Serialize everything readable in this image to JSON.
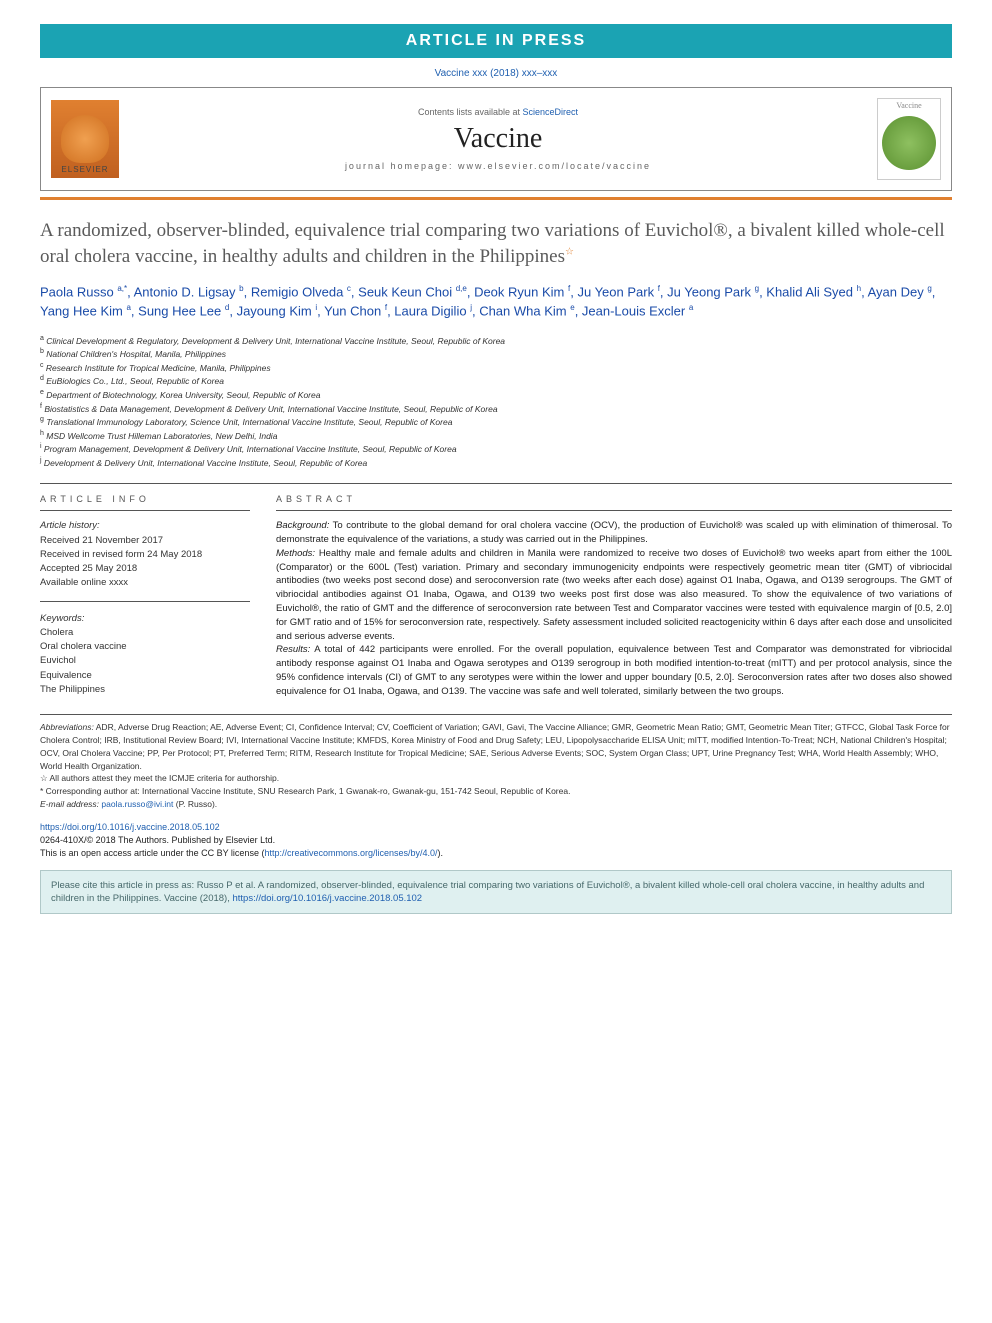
{
  "press_bar": "ARTICLE IN PRESS",
  "citation_line": "Vaccine xxx (2018) xxx–xxx",
  "header": {
    "contents_prefix": "Contents lists available at ",
    "contents_link": "ScienceDirect",
    "journal": "Vaccine",
    "homepage": "journal homepage: www.elsevier.com/locate/vaccine",
    "elsevier_label": "ELSEVIER",
    "cover_label": "Vaccine"
  },
  "title": "A randomized, observer-blinded, equivalence trial comparing two variations of Euvichol®, a bivalent killed whole-cell oral cholera vaccine, in healthy adults and children in the Philippines",
  "title_star": "☆",
  "authors_html": "Paola Russo <sup>a,*</sup>, Antonio D. Ligsay <sup>b</sup>, Remigio Olveda <sup>c</sup>, Seuk Keun Choi <sup>d,e</sup>, Deok Ryun Kim <sup>f</sup>, Ju Yeon Park <sup>f</sup>, Ju Yeong Park <sup>g</sup>, Khalid Ali Syed <sup>h</sup>, Ayan Dey <sup>g</sup>, Yang Hee Kim <sup>a</sup>, Sung Hee Lee <sup>d</sup>, Jayoung Kim <sup>i</sup>, Yun Chon <sup>f</sup>, Laura Digilio <sup>j</sup>, Chan Wha Kim <sup>e</sup>, Jean-Louis Excler <sup>a</sup>",
  "affiliations": [
    {
      "sup": "a",
      "text": "Clinical Development & Regulatory, Development & Delivery Unit, International Vaccine Institute, Seoul, Republic of Korea"
    },
    {
      "sup": "b",
      "text": "National Children's Hospital, Manila, Philippines"
    },
    {
      "sup": "c",
      "text": "Research Institute for Tropical Medicine, Manila, Philippines"
    },
    {
      "sup": "d",
      "text": "EuBiologics Co., Ltd., Seoul, Republic of Korea"
    },
    {
      "sup": "e",
      "text": "Department of Biotechnology, Korea University, Seoul, Republic of Korea"
    },
    {
      "sup": "f",
      "text": "Biostatistics & Data Management, Development & Delivery Unit, International Vaccine Institute, Seoul, Republic of Korea"
    },
    {
      "sup": "g",
      "text": "Translational Immunology Laboratory, Science Unit, International Vaccine Institute, Seoul, Republic of Korea"
    },
    {
      "sup": "h",
      "text": "MSD Wellcome Trust Hilleman Laboratories, New Delhi, India"
    },
    {
      "sup": "i",
      "text": "Program Management, Development & Delivery Unit, International Vaccine Institute, Seoul, Republic of Korea"
    },
    {
      "sup": "j",
      "text": "Development & Delivery Unit, International Vaccine Institute, Seoul, Republic of Korea"
    }
  ],
  "info_heading": "ARTICLE INFO",
  "history": {
    "label": "Article history:",
    "received": "Received 21 November 2017",
    "revised": "Received in revised form 24 May 2018",
    "accepted": "Accepted 25 May 2018",
    "online": "Available online xxxx"
  },
  "keywords": {
    "label": "Keywords:",
    "items": [
      "Cholera",
      "Oral cholera vaccine",
      "Euvichol",
      "Equivalence",
      "The Philippines"
    ]
  },
  "abstract_heading": "ABSTRACT",
  "abstract": {
    "bg_label": "Background:",
    "bg": " To contribute to the global demand for oral cholera vaccine (OCV), the production of Euvichol® was scaled up with elimination of thimerosal. To demonstrate the equivalence of the variations, a study was carried out in the Philippines.",
    "m_label": "Methods:",
    "m": " Healthy male and female adults and children in Manila were randomized to receive two doses of Euvichol® two weeks apart from either the 100L (Comparator) or the 600L (Test) variation. Primary and secondary immunogenicity endpoints were respectively geometric mean titer (GMT) of vibriocidal antibodies (two weeks post second dose) and seroconversion rate (two weeks after each dose) against O1 Inaba, Ogawa, and O139 serogroups. The GMT of vibriocidal antibodies against O1 Inaba, Ogawa, and O139 two weeks post first dose was also measured. To show the equivalence of two variations of Euvichol®, the ratio of GMT and the difference of seroconversion rate between Test and Comparator vaccines were tested with equivalence margin of [0.5, 2.0] for GMT ratio and of 15% for seroconversion rate, respectively. Safety assessment included solicited reactogenicity within 6 days after each dose and unsolicited and serious adverse events.",
    "r_label": "Results:",
    "r": " A total of 442 participants were enrolled. For the overall population, equivalence between Test and Comparator was demonstrated for vibriocidal antibody response against O1 Inaba and Ogawa serotypes and O139 serogroup in both modified intention-to-treat (mITT) and per protocol analysis, since the 95% confidence intervals (CI) of GMT to any serotypes were within the lower and upper boundary [0.5, 2.0]. Seroconversion rates after two doses also showed equivalence for O1 Inaba, Ogawa, and O139. The vaccine was safe and well tolerated, similarly between the two groups."
  },
  "footnotes": {
    "abbrev_label": "Abbreviations:",
    "abbrev": " ADR, Adverse Drug Reaction; AE, Adverse Event; CI, Confidence Interval; CV, Coefficient of Variation; GAVI, Gavi, The Vaccine Alliance; GMR, Geometric Mean Ratio; GMT, Geometric Mean Titer; GTFCC, Global Task Force for Cholera Control; IRB, Institutional Review Board; IVI, International Vaccine Institute; KMFDS, Korea Ministry of Food and Drug Safety; LEU, Lipopolysaccharide ELISA Unit; mITT, modified Intention-To-Treat; NCH, National Children's Hospital; OCV, Oral Cholera Vaccine; PP, Per Protocol; PT, Preferred Term; RITM, Research Institute for Tropical Medicine; SAE, Serious Adverse Events; SOC, System Organ Class; UPT, Urine Pregnancy Test; WHA, World Health Assembly; WHO, World Health Organization.",
    "star1": "☆ All authors attest they meet the ICMJE criteria for authorship.",
    "star2": "* Corresponding author at: International Vaccine Institute, SNU Research Park, 1 Gwanak-ro, Gwanak-gu, 151-742 Seoul, Republic of Korea.",
    "email_label": "E-mail address: ",
    "email": "paola.russo@ivi.int",
    "email_tail": " (P. Russo)."
  },
  "doi": {
    "url": "https://doi.org/10.1016/j.vaccine.2018.05.102",
    "issn": "0264-410X/© 2018 The Authors. Published by Elsevier Ltd.",
    "oa": "This is an open access article under the CC BY license (",
    "cc": "http://creativecommons.org/licenses/by/4.0/",
    "oa_tail": ")."
  },
  "cite_box": {
    "prefix": "Please cite this article in press as: Russo P et al. A randomized, observer-blinded, equivalence trial comparing two variations of Euvichol®, a bivalent killed whole-cell oral cholera vaccine, in healthy adults and children in the Philippines. Vaccine (2018), ",
    "doi": "https://doi.org/10.1016/j.vaccine.2018.05.102"
  }
}
